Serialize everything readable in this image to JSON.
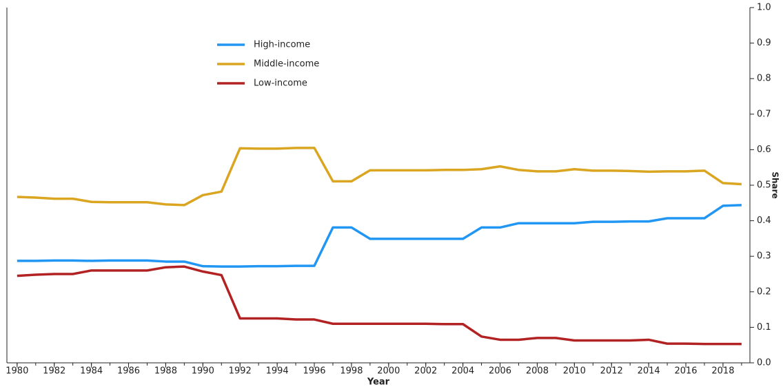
{
  "chart_data": {
    "type": "line",
    "x_label": "Year",
    "y_label": "Share",
    "x": [
      1980,
      1981,
      1982,
      1983,
      1984,
      1985,
      1986,
      1987,
      1988,
      1989,
      1990,
      1991,
      1992,
      1993,
      1994,
      1995,
      1996,
      1997,
      1998,
      1999,
      2000,
      2001,
      2002,
      2003,
      2004,
      2005,
      2006,
      2007,
      2008,
      2009,
      2010,
      2011,
      2012,
      2013,
      2014,
      2015,
      2016,
      2017,
      2018,
      2019
    ],
    "series": [
      {
        "name": "High-income",
        "color": "#2196f3",
        "values": [
          0.287,
          0.287,
          0.288,
          0.288,
          0.287,
          0.288,
          0.288,
          0.288,
          0.285,
          0.285,
          0.272,
          0.271,
          0.271,
          0.272,
          0.272,
          0.273,
          0.273,
          0.381,
          0.381,
          0.349,
          0.349,
          0.349,
          0.349,
          0.349,
          0.349,
          0.381,
          0.381,
          0.393,
          0.393,
          0.393,
          0.393,
          0.397,
          0.397,
          0.398,
          0.398,
          0.407,
          0.407,
          0.407,
          0.442,
          0.444
        ]
      },
      {
        "name": "Middle-income",
        "color": "#daa520",
        "values": [
          0.467,
          0.465,
          0.462,
          0.462,
          0.453,
          0.452,
          0.452,
          0.452,
          0.446,
          0.444,
          0.472,
          0.482,
          0.604,
          0.603,
          0.603,
          0.605,
          0.605,
          0.511,
          0.511,
          0.542,
          0.542,
          0.542,
          0.542,
          0.543,
          0.543,
          0.545,
          0.553,
          0.543,
          0.539,
          0.539,
          0.545,
          0.541,
          0.541,
          0.54,
          0.538,
          0.539,
          0.539,
          0.541,
          0.506,
          0.503
        ]
      },
      {
        "name": "Low-income",
        "color": "#b22222",
        "values": [
          0.245,
          0.248,
          0.25,
          0.25,
          0.26,
          0.26,
          0.26,
          0.26,
          0.269,
          0.271,
          0.257,
          0.247,
          0.125,
          0.125,
          0.125,
          0.122,
          0.122,
          0.11,
          0.11,
          0.11,
          0.11,
          0.11,
          0.11,
          0.109,
          0.109,
          0.074,
          0.065,
          0.065,
          0.07,
          0.07,
          0.063,
          0.063,
          0.063,
          0.063,
          0.065,
          0.054,
          0.054,
          0.053,
          0.053,
          0.053
        ]
      }
    ],
    "xlim": [
      1979.45,
      2019.45
    ],
    "xticks": [
      1980,
      1982,
      1984,
      1986,
      1988,
      1990,
      1992,
      1994,
      1996,
      1998,
      2000,
      2002,
      2004,
      2006,
      2008,
      2010,
      2012,
      2014,
      2016,
      2018
    ],
    "ylim": [
      0,
      1
    ],
    "yticks": [
      {
        "value": 0,
        "label": "0.0"
      },
      0.1,
      0.2,
      0.3,
      0.4,
      0.5,
      0.6,
      0.7,
      0.8,
      0.9,
      {
        "value": 1,
        "label": "1.0"
      }
    ],
    "y_axis_side": "right",
    "legend": "top-left"
  }
}
